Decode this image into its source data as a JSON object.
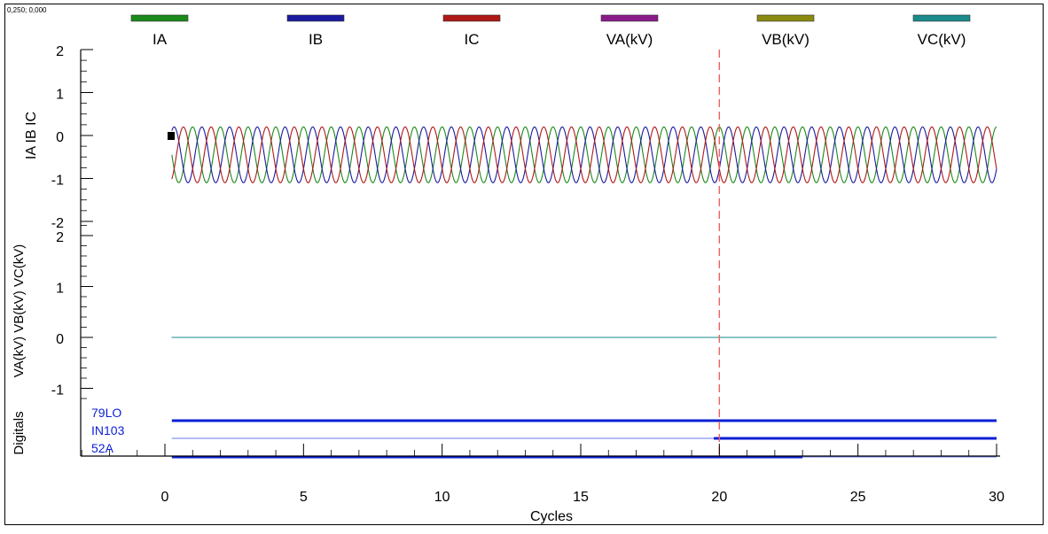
{
  "cursor_readout": "0,250; 0,000",
  "colors": {
    "IA": "#1a8a1a",
    "IB": "#1a1aa0",
    "IC": "#b01818",
    "VA": "#8a1a8a",
    "VB": "#8a8a10",
    "VC": "#1a8a8a",
    "digital": "#0b1fd6",
    "cursor": "#f06060",
    "frame": "#000000"
  },
  "chart_data": {
    "type": "line",
    "title": "",
    "xlabel": "Cycles",
    "xlim": [
      -3,
      30.5
    ],
    "xticks": [
      0,
      5,
      10,
      15,
      20,
      25,
      30
    ],
    "cursor_x": 20,
    "legend": [
      "IA",
      "IB",
      "IC",
      "VA(kV)",
      "VB(kV)",
      "VC(kV)"
    ],
    "panels": [
      {
        "id": "currents",
        "ylabel": "IA IB IC",
        "ylim": [
          -2,
          2
        ],
        "yticks": [
          2,
          1,
          0,
          -1,
          -2
        ],
        "series": [
          {
            "name": "IA",
            "kind": "sine",
            "amplitude": 0.65,
            "offset": -0.45,
            "phase_deg": 0
          },
          {
            "name": "IB",
            "kind": "sine",
            "amplitude": 0.65,
            "offset": -0.45,
            "phase_deg": -120
          },
          {
            "name": "IC",
            "kind": "sine",
            "amplitude": 0.65,
            "offset": -0.45,
            "phase_deg": 120
          }
        ],
        "x_start": 0.25,
        "x_end": 30
      },
      {
        "id": "voltages",
        "ylabel": "VA(kV) VB(kV) VC(kV)",
        "ylim": [
          -1.3,
          2.4
        ],
        "yticks": [
          2,
          1,
          0,
          -1
        ],
        "series": [
          {
            "name": "VA(kV)",
            "kind": "flat",
            "value": 0
          },
          {
            "name": "VB(kV)",
            "kind": "flat",
            "value": 0
          },
          {
            "name": "VC(kV)",
            "kind": "flat",
            "value": 0
          }
        ],
        "x_start": 0.25,
        "x_end": 30
      },
      {
        "id": "digitals",
        "ylabel": "Digitals",
        "channels": [
          {
            "name": "79LO",
            "segments": [
              {
                "from": 0.25,
                "to": 30,
                "state": 1
              }
            ]
          },
          {
            "name": "IN103",
            "segments": [
              {
                "from": 0.25,
                "to": 19.8,
                "state": 0
              },
              {
                "from": 19.8,
                "to": 30,
                "state": 1
              }
            ]
          },
          {
            "name": "52A",
            "segments": [
              {
                "from": 0.25,
                "to": 23,
                "state": 1
              },
              {
                "from": 23,
                "to": 30,
                "state": 0
              }
            ]
          }
        ]
      }
    ]
  }
}
